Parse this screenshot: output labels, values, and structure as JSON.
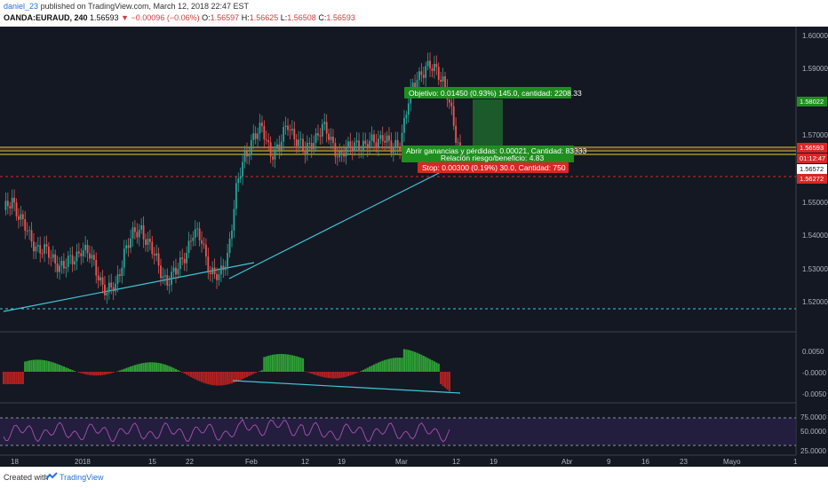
{
  "header": {
    "username": "daniel_23",
    "published_text": "published on TradingView.com, March 12, 2018 22:47 EST",
    "symbol": "OANDA:EURAUD, 240",
    "last": "1.56593",
    "change": "−0.00096 (−0.06%)",
    "open_label": "O:",
    "open": "1.56597",
    "high_label": "H:",
    "high": "1.56625",
    "low_label": "L:",
    "low": "1.56508",
    "close_label": "C:",
    "close": "1.56593"
  },
  "price_axis": {
    "ticks": [
      "1.60000",
      "1.59000",
      "1.57000",
      "1.55000",
      "1.54000",
      "1.53000",
      "1.52000"
    ],
    "badges": [
      {
        "label": "1.58022",
        "color": "#1e8f1e"
      },
      {
        "label": "1.56593",
        "color": "#d92626"
      },
      {
        "label": "01:12:47",
        "color": "#d92626"
      },
      {
        "label": "1.56572",
        "color": "#ffffff"
      },
      {
        "label": "1.56272",
        "color": "#d92626"
      }
    ]
  },
  "position_tool": {
    "target": "Objetivo: 0.01450 (0.93%) 145.0, cantidad: 2208.33",
    "open_pl": "Abrir ganancias y pérdidas: 0.00021, Cantidad: 83333",
    "risk_reward": "Relación riesgo/beneficio: 4.83",
    "stop": "Stop: 0.00300 (0.19%) 30.0, Cantidad: 750"
  },
  "indicator_axis": {
    "ticks": [
      "0.0050",
      "-0.0000",
      "-0.0050"
    ]
  },
  "rsi_axis": {
    "ticks": [
      "75.0000",
      "50.0000",
      "25.0000"
    ]
  },
  "time_axis": {
    "labels": [
      "18",
      "2018",
      "15",
      "22",
      "Feb",
      "12",
      "19",
      "Mar",
      "12",
      "19",
      "Abr",
      "9",
      "16",
      "23",
      "Mayo",
      "1"
    ]
  },
  "footer": {
    "created_with": "Created with",
    "brand": "TradingView"
  },
  "colors": {
    "background": "#141822",
    "up": "#26a69a",
    "down": "#ef5350",
    "trendline": "#3fc7d9",
    "support": "#e6d23a",
    "rsi": "#9c4ea8"
  },
  "chart_data": {
    "type": "candlestick",
    "symbol": "OANDA:EURAUD",
    "interval": "240",
    "ylim": [
      1.513,
      1.604
    ],
    "close_path": [
      [
        0,
        1.548
      ],
      [
        4,
        1.553
      ],
      [
        8,
        1.546
      ],
      [
        12,
        1.541
      ],
      [
        16,
        1.538
      ],
      [
        20,
        1.536
      ],
      [
        24,
        1.534
      ],
      [
        28,
        1.532
      ],
      [
        32,
        1.534
      ],
      [
        36,
        1.538
      ],
      [
        40,
        1.535
      ],
      [
        44,
        1.53
      ],
      [
        48,
        1.524
      ],
      [
        52,
        1.526
      ],
      [
        56,
        1.537
      ],
      [
        60,
        1.541
      ],
      [
        64,
        1.544
      ],
      [
        68,
        1.538
      ],
      [
        72,
        1.532
      ],
      [
        76,
        1.528
      ],
      [
        80,
        1.53
      ],
      [
        84,
        1.536
      ],
      [
        88,
        1.542
      ],
      [
        92,
        1.54
      ],
      [
        96,
        1.531
      ],
      [
        100,
        1.528
      ],
      [
        104,
        1.536
      ],
      [
        108,
        1.555
      ],
      [
        112,
        1.565
      ],
      [
        116,
        1.572
      ],
      [
        120,
        1.573
      ],
      [
        124,
        1.567
      ],
      [
        128,
        1.568
      ],
      [
        132,
        1.575
      ],
      [
        136,
        1.571
      ],
      [
        140,
        1.566
      ],
      [
        144,
        1.571
      ],
      [
        148,
        1.574
      ],
      [
        152,
        1.57
      ],
      [
        156,
        1.566
      ],
      [
        160,
        1.567
      ],
      [
        164,
        1.57
      ],
      [
        168,
        1.568
      ],
      [
        172,
        1.57
      ],
      [
        176,
        1.572
      ],
      [
        180,
        1.567
      ],
      [
        184,
        1.57
      ],
      [
        188,
        1.582
      ],
      [
        192,
        1.589
      ],
      [
        196,
        1.593
      ],
      [
        200,
        1.591
      ],
      [
        204,
        1.589
      ],
      [
        206,
        1.585
      ],
      [
        208,
        1.578
      ],
      [
        210,
        1.57
      ],
      [
        212,
        1.566
      ]
    ]
  }
}
